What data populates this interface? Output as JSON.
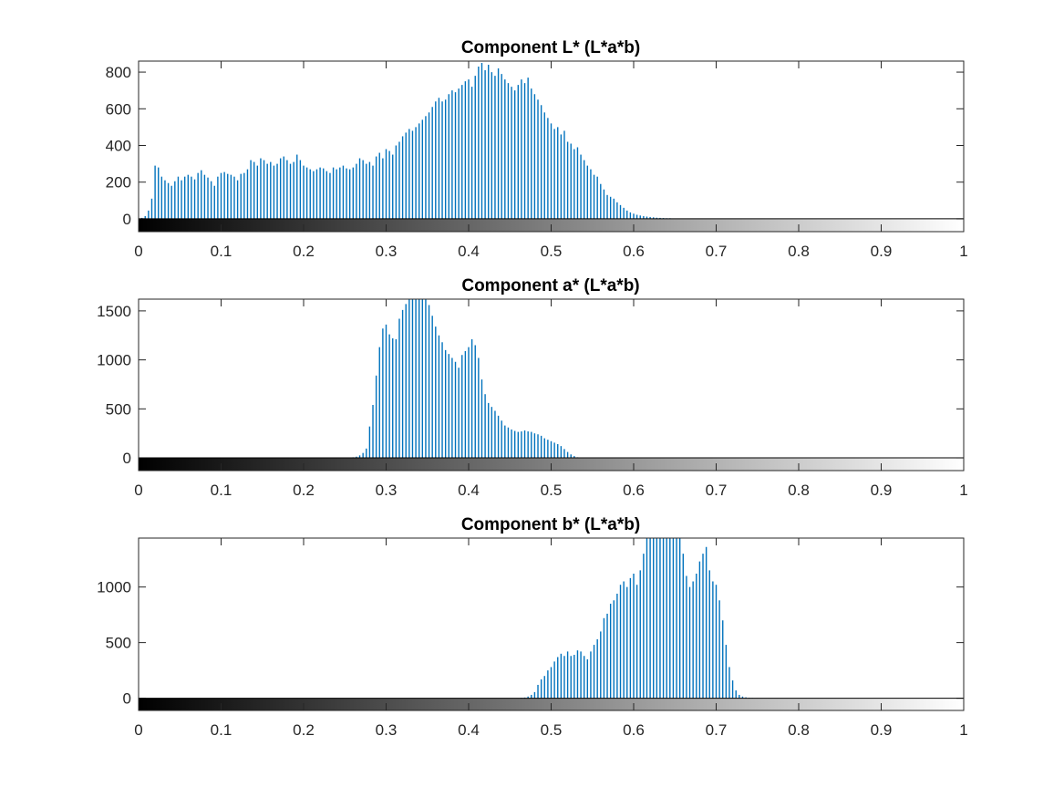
{
  "chart_data": [
    {
      "type": "bar",
      "title": "Component L* (L*a*b)",
      "xlabel": "",
      "ylabel": "",
      "xlim": [
        0,
        1
      ],
      "ylim": [
        -70,
        860
      ],
      "yticks": [
        0,
        200,
        400,
        600,
        800
      ],
      "xticks": [
        0,
        0.1,
        0.2,
        0.3,
        0.4,
        0.5,
        0.6,
        0.7,
        0.8,
        0.9,
        1
      ],
      "xtick_labels": [
        "0",
        "0.1",
        "0.2",
        "0.3",
        "0.4",
        "0.5",
        "0.6",
        "0.7",
        "0.8",
        "0.9",
        "1"
      ],
      "grayscale_colorbar": true,
      "bar_color": "#0072BD",
      "x": [
        0.004,
        0.008,
        0.012,
        0.016,
        0.02,
        0.024,
        0.028,
        0.032,
        0.036,
        0.04,
        0.044,
        0.048,
        0.052,
        0.056,
        0.06,
        0.064,
        0.068,
        0.072,
        0.076,
        0.08,
        0.084,
        0.088,
        0.092,
        0.096,
        0.1,
        0.104,
        0.108,
        0.112,
        0.116,
        0.12,
        0.124,
        0.128,
        0.132,
        0.136,
        0.14,
        0.144,
        0.148,
        0.152,
        0.156,
        0.16,
        0.164,
        0.168,
        0.172,
        0.176,
        0.18,
        0.184,
        0.188,
        0.192,
        0.196,
        0.2,
        0.204,
        0.208,
        0.212,
        0.216,
        0.22,
        0.224,
        0.228,
        0.232,
        0.236,
        0.24,
        0.244,
        0.248,
        0.252,
        0.256,
        0.26,
        0.264,
        0.268,
        0.272,
        0.276,
        0.28,
        0.284,
        0.288,
        0.292,
        0.296,
        0.3,
        0.304,
        0.308,
        0.312,
        0.316,
        0.32,
        0.324,
        0.328,
        0.332,
        0.336,
        0.34,
        0.344,
        0.348,
        0.352,
        0.356,
        0.36,
        0.364,
        0.368,
        0.372,
        0.376,
        0.38,
        0.384,
        0.388,
        0.392,
        0.396,
        0.4,
        0.404,
        0.408,
        0.412,
        0.416,
        0.42,
        0.424,
        0.428,
        0.432,
        0.436,
        0.44,
        0.444,
        0.448,
        0.452,
        0.456,
        0.46,
        0.464,
        0.468,
        0.472,
        0.476,
        0.48,
        0.484,
        0.488,
        0.492,
        0.496,
        0.5,
        0.504,
        0.508,
        0.512,
        0.516,
        0.52,
        0.524,
        0.528,
        0.532,
        0.536,
        0.54,
        0.544,
        0.548,
        0.552,
        0.556,
        0.56,
        0.564,
        0.568,
        0.572,
        0.576,
        0.58,
        0.584,
        0.588,
        0.592,
        0.596,
        0.6,
        0.604,
        0.608,
        0.612,
        0.616,
        0.62,
        0.624,
        0.628,
        0.632,
        0.636,
        0.64,
        0.644,
        0.648,
        0.652,
        0.656,
        0.66,
        0.664,
        0.668,
        0.672,
        0.676,
        0.68,
        0.684,
        0.688,
        0.692,
        0.696,
        0.7,
        0.704,
        0.708,
        0.712
      ],
      "values": [
        5,
        15,
        45,
        110,
        290,
        280,
        230,
        210,
        195,
        180,
        205,
        230,
        210,
        230,
        240,
        230,
        215,
        250,
        265,
        240,
        225,
        205,
        180,
        230,
        250,
        255,
        245,
        240,
        230,
        210,
        245,
        250,
        270,
        320,
        310,
        290,
        330,
        320,
        300,
        310,
        290,
        300,
        330,
        340,
        320,
        300,
        310,
        350,
        320,
        290,
        280,
        270,
        260,
        270,
        280,
        275,
        260,
        250,
        280,
        270,
        280,
        290,
        275,
        270,
        280,
        300,
        330,
        320,
        300,
        310,
        290,
        340,
        360,
        330,
        380,
        370,
        350,
        400,
        420,
        450,
        470,
        490,
        480,
        500,
        520,
        540,
        560,
        580,
        610,
        640,
        660,
        640,
        650,
        680,
        700,
        690,
        710,
        730,
        750,
        760,
        720,
        780,
        830,
        850,
        810,
        840,
        800,
        780,
        820,
        790,
        760,
        740,
        720,
        700,
        730,
        760,
        740,
        770,
        710,
        680,
        650,
        620,
        580,
        550,
        520,
        490,
        500,
        460,
        480,
        420,
        410,
        380,
        390,
        350,
        320,
        290,
        270,
        240,
        230,
        190,
        160,
        130,
        120,
        110,
        90,
        75,
        60,
        45,
        35,
        28,
        22,
        18,
        15,
        12,
        10,
        8,
        6,
        5,
        4,
        3,
        3,
        2,
        2,
        2,
        2,
        1,
        1,
        1,
        1,
        1,
        1,
        1,
        1,
        1,
        1,
        1,
        1,
        1
      ]
    },
    {
      "type": "bar",
      "title": "Component a* (L*a*b)",
      "xlabel": "",
      "ylabel": "",
      "xlim": [
        0,
        1
      ],
      "ylim": [
        -130,
        1620
      ],
      "yticks": [
        0,
        500,
        1000,
        1500
      ],
      "xticks": [
        0,
        0.1,
        0.2,
        0.3,
        0.4,
        0.5,
        0.6,
        0.7,
        0.8,
        0.9,
        1
      ],
      "xtick_labels": [
        "0",
        "0.1",
        "0.2",
        "0.3",
        "0.4",
        "0.5",
        "0.6",
        "0.7",
        "0.8",
        "0.9",
        "1"
      ],
      "grayscale_colorbar": true,
      "bar_color": "#0072BD",
      "x": [
        0.256,
        0.26,
        0.264,
        0.268,
        0.272,
        0.276,
        0.28,
        0.284,
        0.288,
        0.292,
        0.296,
        0.3,
        0.304,
        0.308,
        0.312,
        0.316,
        0.32,
        0.324,
        0.328,
        0.332,
        0.336,
        0.34,
        0.344,
        0.348,
        0.352,
        0.356,
        0.36,
        0.364,
        0.368,
        0.372,
        0.376,
        0.38,
        0.384,
        0.388,
        0.392,
        0.396,
        0.4,
        0.404,
        0.408,
        0.412,
        0.416,
        0.42,
        0.424,
        0.428,
        0.432,
        0.436,
        0.44,
        0.444,
        0.448,
        0.452,
        0.456,
        0.46,
        0.464,
        0.468,
        0.472,
        0.476,
        0.48,
        0.484,
        0.488,
        0.492,
        0.496,
        0.5,
        0.504,
        0.508,
        0.512,
        0.516,
        0.52,
        0.524,
        0.528,
        0.532
      ],
      "values": [
        3,
        6,
        12,
        25,
        50,
        95,
        320,
        540,
        840,
        1130,
        1320,
        1360,
        1260,
        1220,
        1210,
        1420,
        1510,
        1570,
        1620,
        1620,
        1620,
        1620,
        1620,
        1620,
        1560,
        1450,
        1340,
        1250,
        1180,
        1100,
        1060,
        1020,
        980,
        920,
        1050,
        1090,
        1130,
        1210,
        1150,
        1020,
        800,
        650,
        560,
        520,
        480,
        430,
        380,
        330,
        310,
        290,
        275,
        265,
        270,
        280,
        270,
        265,
        250,
        240,
        225,
        200,
        185,
        170,
        155,
        140,
        120,
        90,
        60,
        35,
        18,
        6
      ]
    },
    {
      "type": "bar",
      "title": "Component b* (L*a*b)",
      "xlabel": "",
      "ylabel": "",
      "xlim": [
        0,
        1
      ],
      "ylim": [
        -110,
        1440
      ],
      "yticks": [
        0,
        500,
        1000
      ],
      "xticks": [
        0,
        0.1,
        0.2,
        0.3,
        0.4,
        0.5,
        0.6,
        0.7,
        0.8,
        0.9,
        1
      ],
      "xtick_labels": [
        "0",
        "0.1",
        "0.2",
        "0.3",
        "0.4",
        "0.5",
        "0.6",
        "0.7",
        "0.8",
        "0.9",
        "1"
      ],
      "grayscale_colorbar": true,
      "bar_color": "#0072BD",
      "x": [
        0.464,
        0.468,
        0.472,
        0.476,
        0.48,
        0.484,
        0.488,
        0.492,
        0.496,
        0.5,
        0.504,
        0.508,
        0.512,
        0.516,
        0.52,
        0.524,
        0.528,
        0.532,
        0.536,
        0.54,
        0.544,
        0.548,
        0.552,
        0.556,
        0.56,
        0.564,
        0.568,
        0.572,
        0.576,
        0.58,
        0.584,
        0.588,
        0.592,
        0.596,
        0.6,
        0.604,
        0.608,
        0.612,
        0.616,
        0.62,
        0.624,
        0.628,
        0.632,
        0.636,
        0.64,
        0.644,
        0.648,
        0.652,
        0.656,
        0.66,
        0.664,
        0.668,
        0.672,
        0.676,
        0.68,
        0.684,
        0.688,
        0.692,
        0.696,
        0.7,
        0.704,
        0.708,
        0.712,
        0.716,
        0.72,
        0.724,
        0.728,
        0.732,
        0.736,
        0.74,
        0.744
      ],
      "values": [
        3,
        6,
        15,
        30,
        55,
        120,
        170,
        200,
        250,
        280,
        330,
        370,
        400,
        380,
        420,
        380,
        390,
        430,
        420,
        380,
        350,
        420,
        480,
        530,
        600,
        720,
        760,
        850,
        880,
        940,
        1020,
        1050,
        1000,
        1080,
        1120,
        1020,
        1150,
        1300,
        1440,
        1440,
        1440,
        1440,
        1440,
        1440,
        1440,
        1440,
        1440,
        1440,
        1440,
        1300,
        1100,
        1000,
        1050,
        1120,
        1230,
        1300,
        1360,
        1150,
        1050,
        1020,
        880,
        700,
        480,
        280,
        160,
        70,
        30,
        15,
        8,
        4,
        2
      ]
    }
  ]
}
